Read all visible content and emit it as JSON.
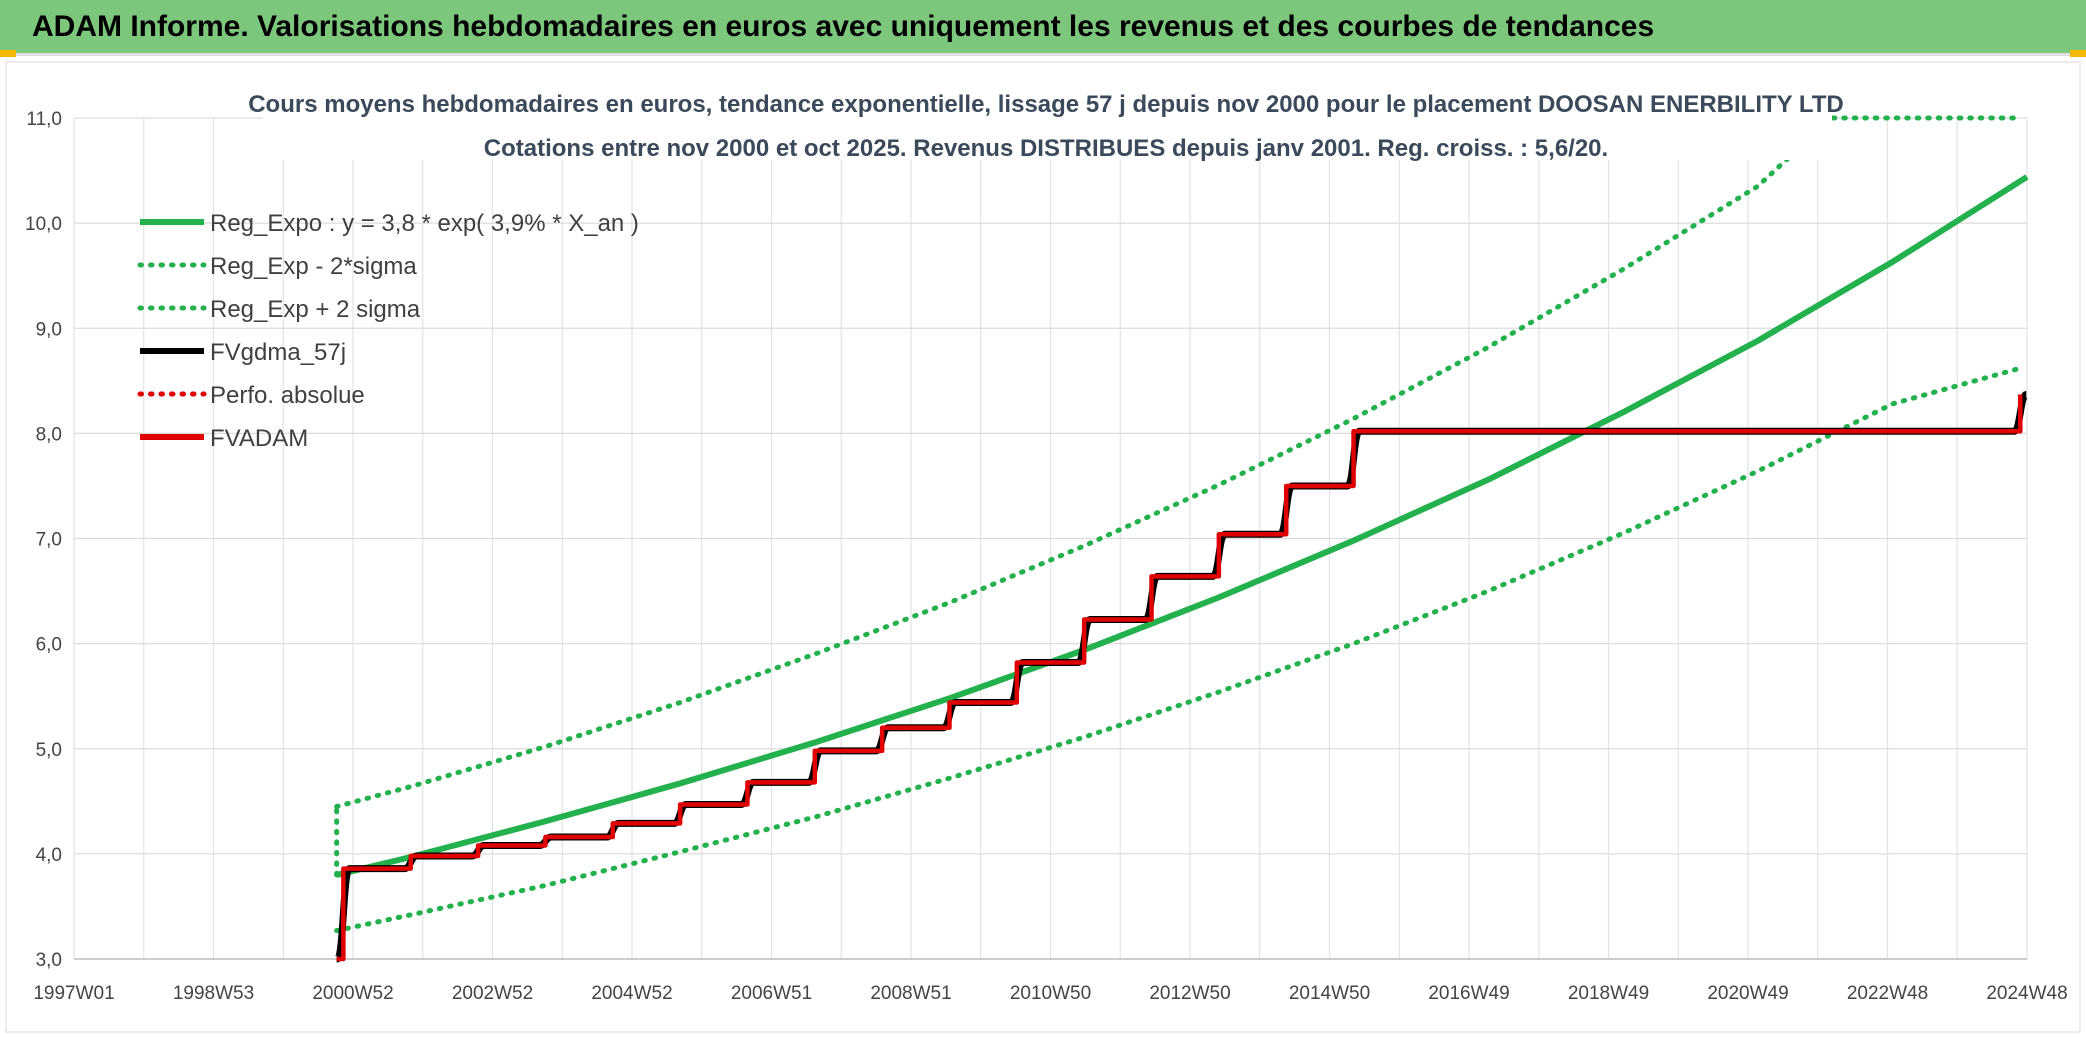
{
  "banner": {
    "title": "ADAM Informe. Valorisations hebdomadaires en euros avec uniquement les revenus et des courbes de tendances",
    "color": "#7cc77c"
  },
  "chart_data": {
    "type": "line",
    "title_lines": [
      "Cours moyens hebdomadaires en euros, tendance exponentielle, lissage 57 j depuis nov 2000 pour le placement DOOSAN ENERBILITY LTD",
      "Cotations entre nov 2000 et oct 2025. Revenus DISTRIBUES depuis janv 2001. Reg. croiss. : 5,6/20."
    ],
    "xlabel": "",
    "ylabel": "",
    "x_tick_labels": [
      "1997W01",
      "1998W53",
      "2000W52",
      "2002W52",
      "2004W52",
      "2006W51",
      "2008W51",
      "2010W50",
      "2012W50",
      "2014W50",
      "2016W49",
      "2018W49",
      "2020W49",
      "2022W48",
      "2024W48"
    ],
    "x_range": [
      1997.0,
      2026.0
    ],
    "ylim": [
      3.0,
      11.0
    ],
    "y_ticks": [
      "3,0",
      "4,0",
      "5,0",
      "6,0",
      "7,0",
      "8,0",
      "9,0",
      "10,0",
      "11,0"
    ],
    "grid": true,
    "legend_position": "top-left",
    "series": [
      {
        "name": "Reg_Expo : y = 3,8 * exp( 3,9% *  X_an )",
        "color": "#22b14c",
        "style": "solid",
        "x": [
          2000.9,
          2002,
          2004,
          2006,
          2008,
          2010,
          2012,
          2014,
          2016,
          2018,
          2020,
          2022,
          2024,
          2026
        ],
        "y": [
          3.8,
          3.97,
          4.31,
          4.67,
          5.06,
          5.48,
          5.94,
          6.44,
          6.98,
          7.56,
          8.2,
          8.88,
          9.63,
          10.44
        ]
      },
      {
        "name": "Reg_Exp - 2*sigma",
        "color": "#22b14c",
        "style": "dotted",
        "x": [
          2000.9,
          2002,
          2004,
          2006,
          2008,
          2010,
          2012,
          2014,
          2016,
          2018,
          2020,
          2022,
          2024,
          2025.9
        ],
        "y": [
          3.27,
          3.42,
          3.7,
          4.02,
          4.35,
          4.72,
          5.11,
          5.54,
          6.0,
          6.5,
          7.05,
          7.64,
          8.28,
          8.62
        ]
      },
      {
        "name": "Reg_Exp + 2 sigma",
        "color": "#22b14c",
        "style": "dotted",
        "x": [
          2000.9,
          2002,
          2004,
          2006,
          2008,
          2010,
          2012,
          2014,
          2016,
          2018,
          2020,
          2022,
          2023.1,
          2025.9
        ],
        "y": [
          4.45,
          4.64,
          5.02,
          5.44,
          5.9,
          6.39,
          6.93,
          7.51,
          8.14,
          8.82,
          9.56,
          10.35,
          11.0,
          11.0
        ]
      },
      {
        "name": "FVgdma_57j",
        "color": "#000000",
        "style": "solid",
        "x": [
          2000.9,
          2001.0,
          2002.0,
          2003.0,
          2004.0,
          2005.0,
          2006.0,
          2007.0,
          2008.0,
          2009.0,
          2010.0,
          2011.0,
          2012.0,
          2013.0,
          2014.0,
          2015.0,
          2016.0,
          2025.9
        ],
        "y": [
          3.0,
          3.86,
          3.98,
          4.08,
          4.16,
          4.29,
          4.47,
          4.68,
          4.98,
          5.2,
          5.44,
          5.82,
          6.23,
          6.64,
          7.04,
          7.5,
          8.02,
          8.37
        ]
      },
      {
        "name": "Perfo. absolue",
        "color": "#e00000",
        "style": "dotted",
        "x": [],
        "y": []
      },
      {
        "name": "FVADAM",
        "color": "#e00000",
        "style": "step",
        "x": [
          2000.9,
          2001.0,
          2002.0,
          2003.0,
          2004.0,
          2005.0,
          2006.0,
          2007.0,
          2008.0,
          2009.0,
          2010.0,
          2011.0,
          2012.0,
          2013.0,
          2014.0,
          2015.0,
          2016.0,
          2025.9
        ],
        "y": [
          3.0,
          3.86,
          3.98,
          4.08,
          4.16,
          4.29,
          4.47,
          4.68,
          4.98,
          5.2,
          5.44,
          5.82,
          6.23,
          6.64,
          7.04,
          7.5,
          8.02,
          8.37
        ]
      }
    ]
  }
}
